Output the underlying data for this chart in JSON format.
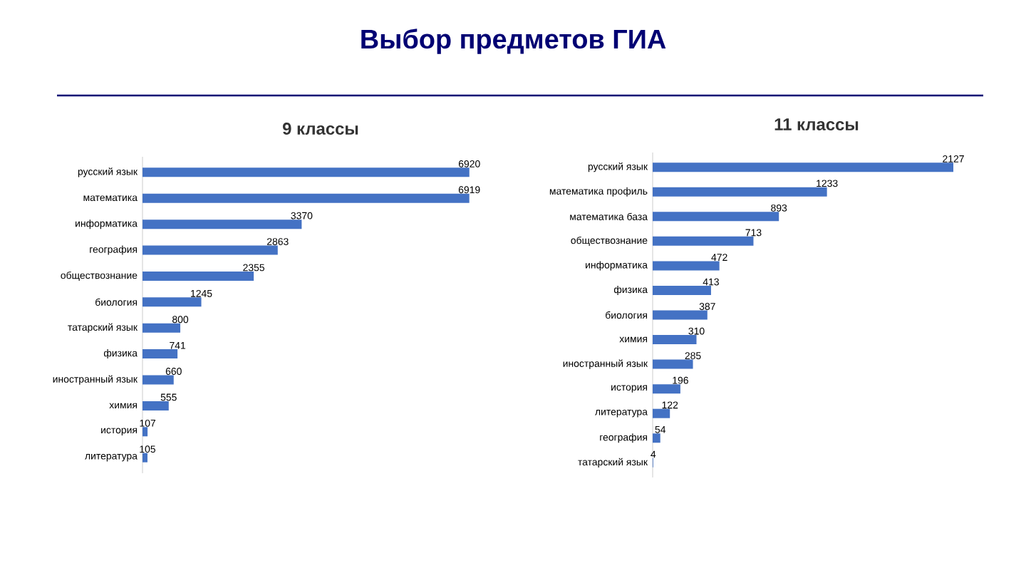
{
  "chart_data": [
    {
      "type": "bar",
      "orientation": "horizontal",
      "title": "9 классы",
      "annotations": [
        "Выбор предметов ГИА"
      ],
      "categories": [
        "русский язык",
        "математика",
        "информатика",
        "география",
        "обществознание",
        "биология",
        "татарский язык",
        "физика",
        "иностранный язык",
        "химия",
        "история",
        "литература"
      ],
      "values": [
        6920,
        6919,
        3370,
        2863,
        2355,
        1245,
        800,
        741,
        660,
        555,
        107,
        105
      ],
      "color": "#4472c4",
      "data_labels": true,
      "tick_labels": "y"
    },
    {
      "type": "bar",
      "orientation": "horizontal",
      "title": "11 классы",
      "categories": [
        "русский язык",
        "математика профиль",
        "математика база",
        "обществознание",
        "информатика",
        "физика",
        "биология",
        "химия",
        "иностранный язык",
        "история",
        "литература",
        "география",
        "татарский язык"
      ],
      "values": [
        2127,
        1233,
        893,
        713,
        472,
        413,
        387,
        310,
        285,
        196,
        122,
        54,
        4
      ],
      "color": "#4472c4",
      "data_labels": true,
      "tick_labels": "y"
    }
  ]
}
